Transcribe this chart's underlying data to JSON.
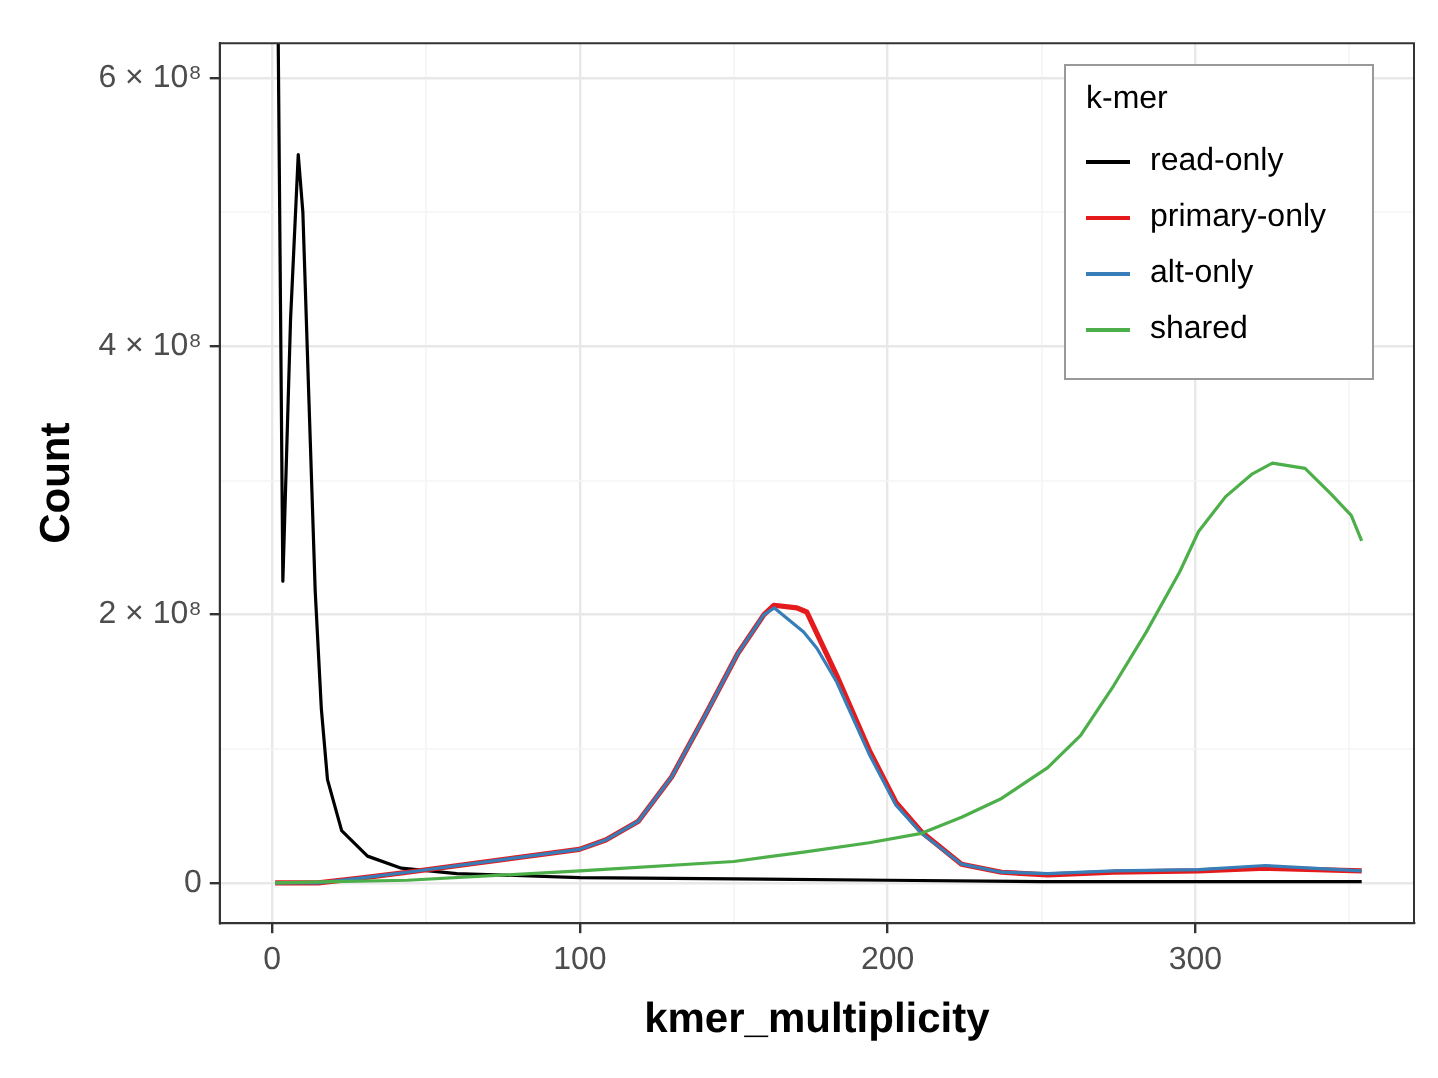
{
  "chart_data": {
    "type": "line",
    "xlabel": "kmer_multiplicity",
    "ylabel": "Count",
    "legend_title": "k-mer",
    "legend": "top right",
    "grid": true,
    "marker": "none",
    "line_style": "solid",
    "xlim": [
      -17,
      371
    ],
    "xticks": [
      0,
      {
        "value": 50,
        "label": null
      },
      100,
      {
        "value": 150,
        "label": null
      },
      200,
      {
        "value": 250,
        "label": null
      },
      300,
      {
        "value": 350,
        "label": null
      }
    ],
    "ylim": [
      -30000000,
      626000000
    ],
    "yticks": [
      {
        "value": 0,
        "label": "0"
      },
      {
        "value": 100000000,
        "label": null
      },
      {
        "value": 200000000,
        "label": "2 × 10⁸"
      },
      {
        "value": 300000000,
        "label": null
      },
      {
        "value": 400000000,
        "label": "4 × 10⁸"
      },
      {
        "value": 500000000,
        "label": null
      },
      {
        "value": 600000000,
        "label": "6 × 10⁸"
      }
    ],
    "series": [
      {
        "name": "read-only",
        "color": "#000000",
        "x": [
          2,
          3.5,
          6,
          8.5,
          10,
          12,
          14,
          16,
          18,
          22.6,
          31,
          42,
          60,
          100,
          150,
          200,
          250,
          300,
          354
        ],
        "values": [
          626000000,
          225000000,
          420000000,
          543000000,
          500000000,
          358000000,
          218000000,
          130000000,
          77000000,
          39000000,
          20000000,
          11000000,
          7000000,
          4000000,
          3000000,
          2000000,
          1000000,
          1000000,
          1000000
        ]
      },
      {
        "name": "primary-only",
        "color": "#e41a1c",
        "x": [
          1,
          15,
          30,
          44,
          99.8,
          108.4,
          119,
          129.8,
          140.5,
          151.3,
          159.8,
          163,
          170.5,
          173.7,
          183.4,
          194,
          202.7,
          211,
          224,
          237,
          252,
          273.4,
          301,
          322.7,
          354
        ],
        "values": [
          0,
          0,
          4000000,
          8000000,
          25000000,
          32000000,
          46000000,
          79000000,
          124000000,
          171000000,
          200000000,
          207000000,
          205000000,
          202000000,
          155000000,
          99000000,
          60000000,
          38000000,
          14000000,
          8000000,
          6000000,
          8000000,
          9000000,
          11000000,
          9000000
        ]
      },
      {
        "name": "alt-only",
        "color": "#377eb8",
        "x": [
          1,
          15,
          30,
          44,
          99.8,
          108.4,
          119,
          129.8,
          140.5,
          151.3,
          159.8,
          163.2,
          172.7,
          177,
          183.4,
          194,
          202.7,
          211,
          224,
          237,
          252,
          273.4,
          301,
          322.7,
          354
        ],
        "values": [
          0,
          0,
          4000000,
          8000000,
          25000000,
          32000000,
          46000000,
          79000000,
          124000000,
          171000000,
          200000000,
          205000000,
          187000000,
          175000000,
          150000000,
          96000000,
          58000000,
          37000000,
          14000000,
          8000000,
          7000000,
          9000000,
          10000000,
          13000000,
          9000000
        ]
      },
      {
        "name": "shared",
        "color": "#4daf4a",
        "x": [
          1,
          20,
          44,
          100,
          150,
          172.7,
          194,
          211,
          224,
          237,
          252,
          262.7,
          273.4,
          284,
          294.9,
          301,
          309.8,
          318.5,
          325,
          335.6,
          344,
          350.6,
          354
        ],
        "values": [
          0,
          1000000,
          2000000,
          9000000,
          16000000,
          23000000,
          30000000,
          37000000,
          49000000,
          63000000,
          86000000,
          110000000,
          147000000,
          187000000,
          232000000,
          262000000,
          288000000,
          305000000,
          313000000,
          309000000,
          290000000,
          274000000,
          255000000
        ]
      }
    ]
  }
}
